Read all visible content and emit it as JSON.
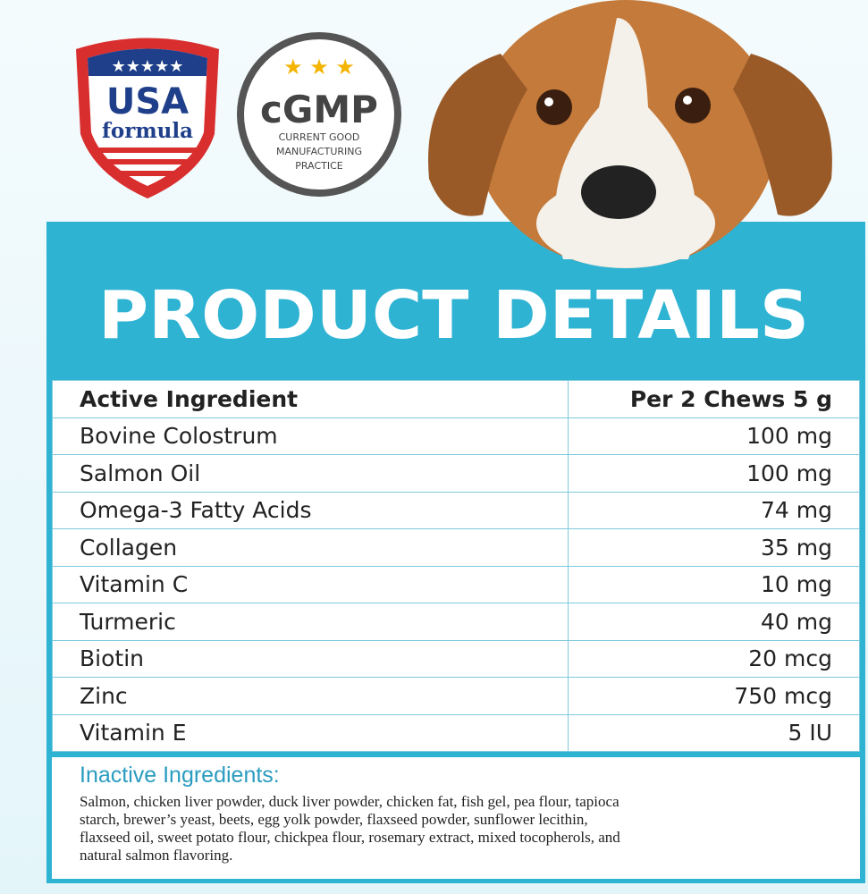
{
  "badges": {
    "usa": {
      "line1": "USA",
      "line2": "formula"
    },
    "cgmp": {
      "title": "cGMP",
      "lines": [
        "CURRENT GOOD",
        "MANUFACTURING",
        "PRACTICE"
      ]
    }
  },
  "title": "PRODUCT DETAILS",
  "table": {
    "header": [
      "Active Ingredient",
      "Per 2 Chews 5 g"
    ],
    "rows": [
      [
        "Bovine Colostrum",
        "100 mg"
      ],
      [
        "Salmon Oil",
        "100 mg"
      ],
      [
        "Omega-3 Fatty Acids",
        "74 mg"
      ],
      [
        "Collagen",
        "35 mg"
      ],
      [
        "Vitamin C",
        "10 mg"
      ],
      [
        "Turmeric",
        "40 mg"
      ],
      [
        "Biotin",
        "20 mcg"
      ],
      [
        "Zinc",
        "750 mcg"
      ],
      [
        "Vitamin E",
        "5 IU"
      ]
    ]
  },
  "inactive": {
    "title": "Inactive Ingredients:",
    "lines": [
      "Salmon, chicken liver powder, duck liver powder, chicken fat, fish gel, pea flour, tapioca",
      "starch, brewer’s yeast, beets, egg yolk powder, flaxseed powder, sunflower lecithin,",
      "flaxseed oil, sweet potato flour, chickpea flour, rosemary extract, mixed tocopherols, and",
      "natural salmon flavoring."
    ]
  }
}
